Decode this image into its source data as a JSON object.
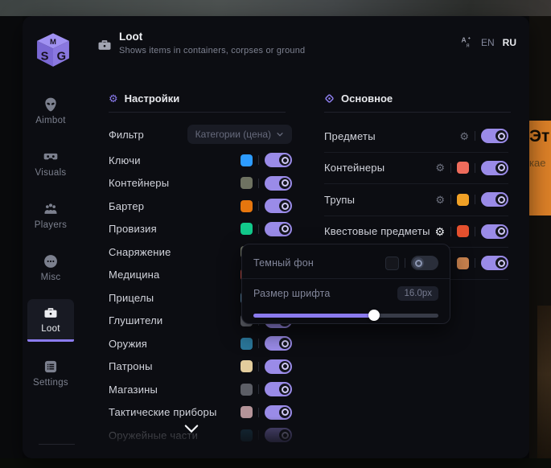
{
  "colors": {
    "accent": "#8b7bee",
    "toggle_on": "#9a8be8",
    "notification": "#dd8128"
  },
  "header": {
    "title": "Loot",
    "subtitle": "Shows items in containers, corpses or ground"
  },
  "language": {
    "en": "EN",
    "ru": "RU"
  },
  "sidebar": {
    "items": [
      {
        "label": "Aimbot",
        "icon": "alien-icon",
        "active": false
      },
      {
        "label": "Visuals",
        "icon": "vr-goggles-icon",
        "active": false
      },
      {
        "label": "Players",
        "icon": "players-icon",
        "active": false
      },
      {
        "label": "Misc",
        "icon": "ellipsis-icon",
        "active": false
      },
      {
        "label": "Loot",
        "icon": "briefcase-icon",
        "active": true
      },
      {
        "label": "Settings",
        "icon": "list-icon",
        "active": false
      }
    ]
  },
  "left_section": {
    "title": "Настройки",
    "filter_label": "Фильтр",
    "filter_value": "Категории (цена)",
    "rows": [
      {
        "label": "Ключи",
        "color": "#2d9cff",
        "on": true
      },
      {
        "label": "Контейнеры",
        "color": "#6e7261",
        "on": true
      },
      {
        "label": "Бартер",
        "color": "#e6760e",
        "on": true
      },
      {
        "label": "Провизия",
        "color": "#12c98b",
        "on": true
      },
      {
        "label": "Снаряжение",
        "color": "#777b68",
        "on": true
      },
      {
        "label": "Медицина",
        "color": "#d94f43",
        "on": true
      },
      {
        "label": "Прицелы",
        "color": "#5a8db0",
        "on": true
      },
      {
        "label": "Глушители",
        "color": "#62656e",
        "on": true
      },
      {
        "label": "Оружия",
        "color": "#2a7699",
        "on": true
      },
      {
        "label": "Патроны",
        "color": "#e3cd9d",
        "on": true
      },
      {
        "label": "Магазины",
        "color": "#5c5e66",
        "on": true
      },
      {
        "label": "Тактические приборы",
        "color": "#b49499",
        "on": true
      },
      {
        "label": "Оружейные части",
        "color": "#1f4f66",
        "on": true,
        "dimmed": true
      }
    ]
  },
  "right_section": {
    "title": "Основное",
    "rows": [
      {
        "label": "Предметы",
        "gear": true,
        "gear_active": false,
        "color": null,
        "on": true
      },
      {
        "label": "Контейнеры",
        "gear": true,
        "gear_active": false,
        "color": "#ee6c5c",
        "on": true
      },
      {
        "label": "Трупы",
        "gear": true,
        "gear_active": false,
        "color": "#f0a126",
        "on": true
      },
      {
        "label": "Квестовые предметы",
        "gear": true,
        "gear_active": true,
        "color": "#e4502e",
        "on": true
      },
      {
        "label": "",
        "gear": false,
        "gear_active": false,
        "color": "#c8824e",
        "on": true
      }
    ]
  },
  "popup": {
    "dark_bg_label": "Темный фон",
    "dark_bg_on": false,
    "font_size_label": "Размер шрифта",
    "font_size_value": "16.0px",
    "slider_percent": 65
  },
  "background_notification": {
    "line1": "Эт",
    "line2": "кае"
  }
}
